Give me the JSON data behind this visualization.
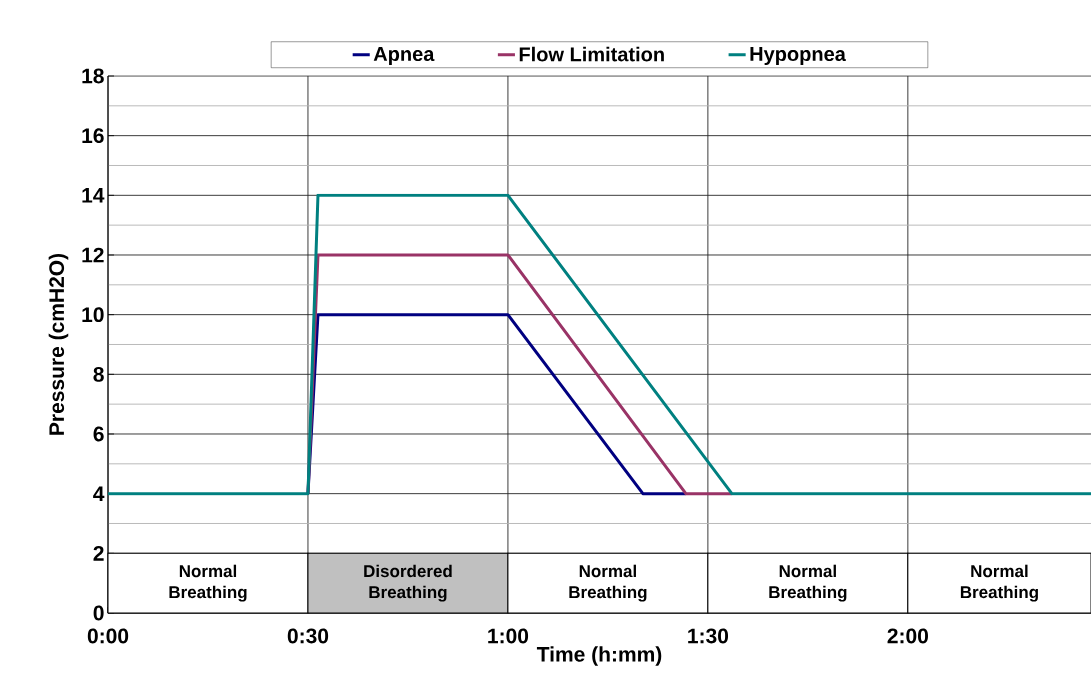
{
  "chart_data": {
    "type": "line",
    "xlabel": "Time (h:mm)",
    "ylabel": "Pressure (cmH2O)",
    "xlim": [
      0,
      2.458
    ],
    "ylim": [
      0,
      18
    ],
    "xticks": [
      {
        "value": 0,
        "label": "0:00"
      },
      {
        "value": 0.5,
        "label": "0:30"
      },
      {
        "value": 1,
        "label": "1:00"
      },
      {
        "value": 1.5,
        "label": "1:30"
      },
      {
        "value": 2,
        "label": "2:00"
      }
    ],
    "yticks": [
      0,
      2,
      4,
      6,
      8,
      10,
      12,
      14,
      16,
      18
    ],
    "grid": true,
    "legend": "top",
    "line_style": "solid",
    "series": [
      {
        "name": "Apnea",
        "color": "#000080",
        "x": [
          0.5,
          0.525,
          1.0,
          1.3375,
          1.445
        ],
        "values": [
          4,
          10,
          10,
          4,
          4
        ]
      },
      {
        "name": "Flow Limitation",
        "color": "#993366",
        "x": [
          0.5,
          0.525,
          1.0,
          1.445,
          1.56
        ],
        "values": [
          4,
          12,
          12,
          4,
          4
        ]
      },
      {
        "name": "Hypopnea",
        "color": "#008080",
        "x": [
          0,
          0.5,
          0.525,
          1.0,
          1.56,
          2.458
        ],
        "values": [
          4,
          4,
          14,
          14,
          4,
          4
        ]
      }
    ],
    "bands": [
      {
        "axis": "x",
        "from": 0,
        "to": 0.5,
        "label": "Normal Breathing",
        "color": "#ffffff"
      },
      {
        "axis": "x",
        "from": 0.5,
        "to": 1.0,
        "label": "Disordered Breathing",
        "color": "#c0c0c0"
      },
      {
        "axis": "x",
        "from": 1.0,
        "to": 1.5,
        "label": "Normal Breathing",
        "color": "#ffffff"
      },
      {
        "axis": "x",
        "from": 1.5,
        "to": 2.0,
        "label": "Normal Breathing",
        "color": "#ffffff"
      },
      {
        "axis": "x",
        "from": 2.0,
        "to": 2.458,
        "label": "Normal Breathing",
        "color": "#ffffff"
      }
    ]
  }
}
